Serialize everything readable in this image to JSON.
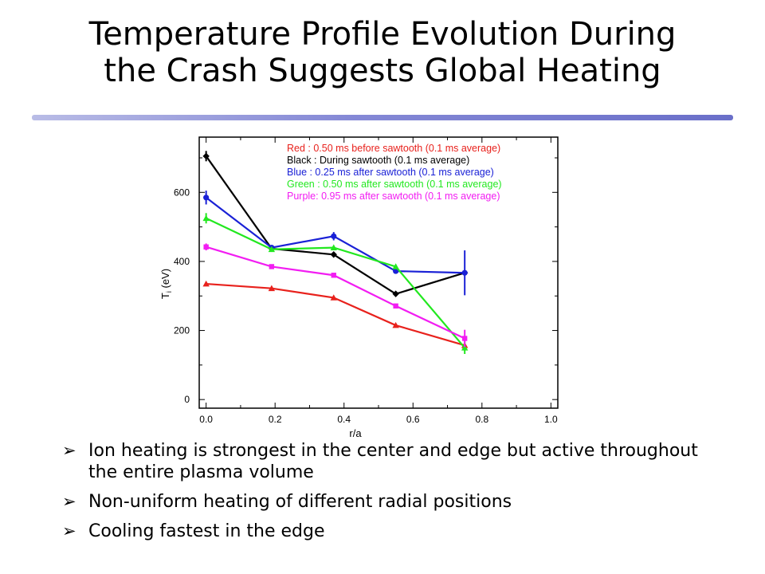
{
  "slide": {
    "title_line1": "Temperature Profile Evolution During",
    "title_line2": "the Crash Suggests Global Heating"
  },
  "bullet_glyph": "➢",
  "bullets": [
    "Ion heating is strongest in the center and edge but active throughout the entire plasma volume",
    "Non-uniform heating of different radial positions",
    "Cooling fastest in the edge"
  ],
  "chart_data": {
    "type": "line",
    "xlabel": "r/a",
    "ylabel": "T_i (eV)",
    "ylabel_main": "T",
    "ylabel_sub": "i",
    "ylabel_unit": " (eV)",
    "xlim": [
      -0.02,
      1.02
    ],
    "ylim": [
      -25,
      760
    ],
    "xticks": [
      "0.0",
      "0.2",
      "0.4",
      "0.6",
      "0.8",
      "1.0"
    ],
    "xtick_values": [
      0.0,
      0.2,
      0.4,
      0.6,
      0.8,
      1.0
    ],
    "yticks": [
      "0",
      "200",
      "400",
      "600"
    ],
    "ytick_values": [
      0,
      200,
      400,
      600
    ],
    "grid": false,
    "legend_position": "top-right",
    "x": [
      0.0,
      0.19,
      0.37,
      0.55,
      0.75
    ],
    "series": [
      {
        "name": "Red",
        "legend": "Red : 0.50 ms before sawtooth (0.1 ms average)",
        "color": "#e8211c",
        "marker": "triangle",
        "values": [
          335,
          322,
          295,
          215,
          157
        ],
        "errors": [
          0,
          0,
          0,
          0,
          0
        ]
      },
      {
        "name": "Black",
        "legend": "Black : During sawtooth (0.1 ms average)",
        "color": "#000000",
        "marker": "diamond",
        "values": [
          705,
          437,
          420,
          306,
          367
        ],
        "errors": [
          15,
          0,
          0,
          0,
          0
        ]
      },
      {
        "name": "Blue",
        "legend": "Blue : 0.25 ms after sawtooth (0.1 ms average)",
        "color": "#1a21d6",
        "marker": "circle",
        "values": [
          585,
          440,
          473,
          372,
          367
        ],
        "errors": [
          20,
          0,
          12,
          0,
          65
        ]
      },
      {
        "name": "Green",
        "legend": "Green : 0.50 ms after sawtooth (0.1 ms average)",
        "color": "#22e81f",
        "marker": "triangle",
        "values": [
          525,
          435,
          440,
          385,
          150
        ],
        "errors": [
          15,
          0,
          0,
          0,
          18
        ]
      },
      {
        "name": "Purple",
        "legend": "Purple: 0.95 ms after sawtooth (0.1 ms average)",
        "color": "#f21df2",
        "marker": "square",
        "values": [
          442,
          385,
          360,
          271,
          177
        ],
        "errors": [
          10,
          0,
          0,
          0,
          25
        ]
      }
    ]
  }
}
